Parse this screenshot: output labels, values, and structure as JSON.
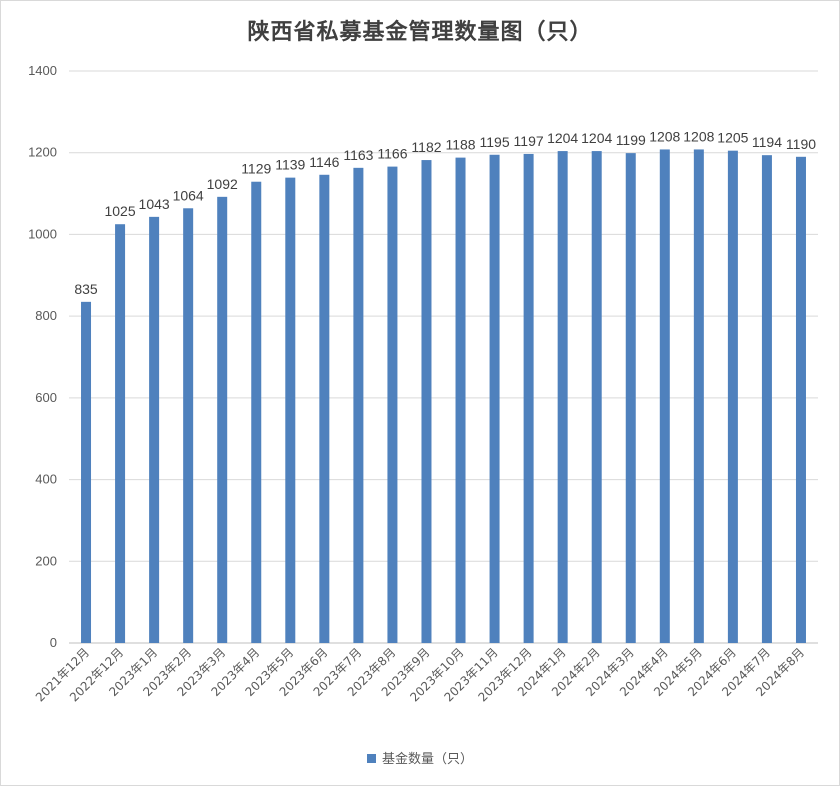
{
  "chart_data": {
    "type": "bar",
    "title": "陕西省私募基金管理数量图（只）",
    "categories": [
      "2021年12月",
      "2022年12月",
      "2023年1月",
      "2023年2月",
      "2023年3月",
      "2023年4月",
      "2023年5月",
      "2023年6月",
      "2023年7月",
      "2023年8月",
      "2023年9月",
      "2023年10月",
      "2023年11月",
      "2023年12月",
      "2024年1月",
      "2024年2月",
      "2024年3月",
      "2024年4月",
      "2024年5月",
      "2024年6月",
      "2024年7月",
      "2024年8月"
    ],
    "series": [
      {
        "name": "基金数量（只）",
        "values": [
          835,
          1025,
          1043,
          1064,
          1092,
          1129,
          1139,
          1146,
          1163,
          1166,
          1182,
          1188,
          1195,
          1197,
          1204,
          1204,
          1199,
          1208,
          1208,
          1205,
          1194,
          1190
        ]
      }
    ],
    "ylim": [
      0,
      1400
    ],
    "yticks": [
      0,
      200,
      400,
      600,
      800,
      1000,
      1200,
      1400
    ],
    "grid": true,
    "legend_position": "bottom",
    "bar_color": "#4f81bd"
  }
}
